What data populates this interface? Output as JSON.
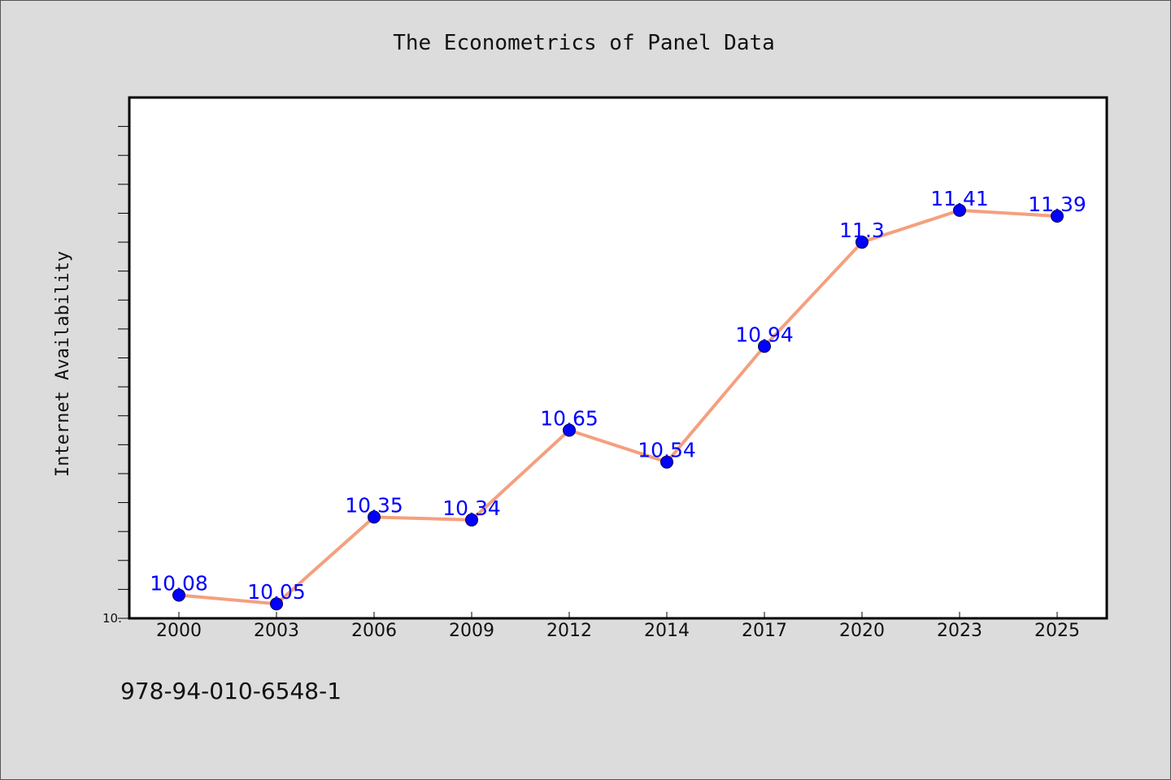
{
  "chart_data": {
    "type": "line",
    "title": "The Econometrics of Panel Data",
    "xlabel": "",
    "ylabel": "Internet Availability",
    "categories": [
      "2000",
      "2003",
      "2006",
      "2009",
      "2012",
      "2014",
      "2017",
      "2020",
      "2023",
      "2025"
    ],
    "series": [
      {
        "values": [
          10.08,
          10.05,
          10.35,
          10.34,
          10.65,
          10.54,
          10.94,
          11.3,
          11.41,
          11.39
        ],
        "labels": [
          "10.08",
          "10.05",
          "10.35",
          "10.34",
          "10.65",
          "10.54",
          "10.94",
          "11.3",
          "11.41",
          "11.39"
        ]
      }
    ],
    "ylim": [
      10.0,
      11.8
    ],
    "y_tick_label": "10.",
    "grid": false,
    "colors": {
      "line": "#f4a07f",
      "marker": "#0000ff",
      "label": "#0000ff",
      "plot_background": "#ffffff",
      "page_background": "#dcdcdc"
    }
  },
  "footer": {
    "isbn": "978-94-010-6548-1"
  }
}
